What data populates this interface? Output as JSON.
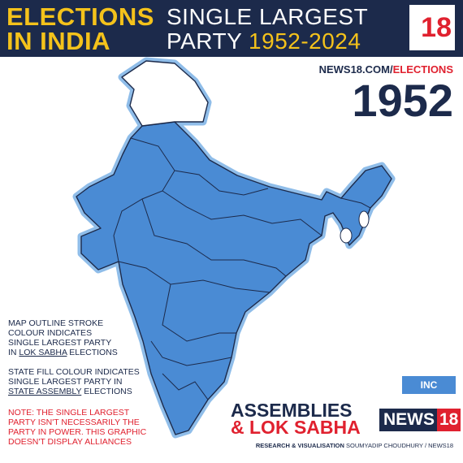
{
  "header": {
    "title_line1": "ELECTIONS",
    "title_line2": "IN INDIA",
    "subtitle_line1": "SINGLE LARGEST",
    "subtitle_line2": "PARTY",
    "years": "1952-2024",
    "logo": "18"
  },
  "site": {
    "domain": "NEWS18.COM/",
    "section": "ELECTIONS"
  },
  "year": "1952",
  "notes": [
    {
      "lines": [
        "MAP OUTLINE STROKE",
        "COLOUR INDICATES",
        "SINGLE LARGEST PARTY"
      ],
      "prefix": "IN",
      "emphasis": "LOK SABHA",
      "suffix": "ELECTIONS"
    },
    {
      "lines": [
        "STATE FILL COLOUR INDICATES",
        "SINGLE LARGEST PARTY IN"
      ],
      "prefix": "",
      "emphasis": "STATE ASSEMBLY",
      "suffix": "ELECTIONS"
    },
    {
      "lines": [
        "NOTE: THE SINGLE LARGEST",
        "PARTY ISN'T NECESSARILY THE",
        "PARTY IN POWER. THIS GRAPHIC",
        "DOESN'T DISPLAY ALLIANCES"
      ]
    }
  ],
  "legend": {
    "label": "INC",
    "color": "#4a8bd4"
  },
  "brand": {
    "assemblies": "ASSEMBLIES",
    "lok_sabha": "& LOK SABHA",
    "news": "NEWS",
    "news_num": "18"
  },
  "credit": {
    "label": "RESEARCH & VISUALISATION",
    "name": "SOUMYADIP CHOUDHURY / NEWS18"
  }
}
